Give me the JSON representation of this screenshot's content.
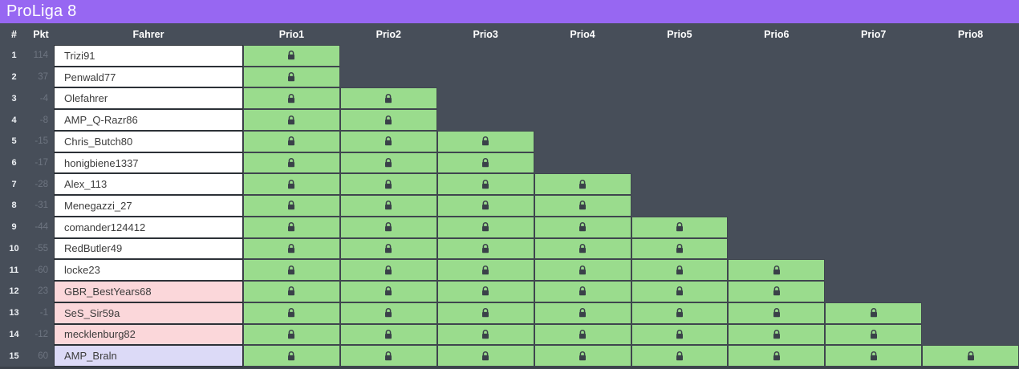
{
  "title": "ProLiga 8",
  "colors": {
    "titlebar_purple": "#9767f2",
    "background_slate": "#474e59",
    "locked_green": "#9adc8d",
    "row_pink": "#fbd7da",
    "row_lavender": "#dcdaf7",
    "row_white": "#ffffff",
    "lock_icon": "#3a4149",
    "points_text": "#6e7581"
  },
  "table": {
    "columns": [
      "#",
      "Pkt",
      "Fahrer",
      "Prio1",
      "Prio2",
      "Prio3",
      "Prio4",
      "Prio5",
      "Prio6",
      "Prio7",
      "Prio8"
    ],
    "rows": [
      {
        "rank": "1",
        "pkt": "114",
        "name": "Trizi91",
        "highlight": "white",
        "locks": 1
      },
      {
        "rank": "2",
        "pkt": "37",
        "name": "Penwald77",
        "highlight": "white",
        "locks": 1
      },
      {
        "rank": "3",
        "pkt": "-4",
        "name": "Olefahrer",
        "highlight": "white",
        "locks": 2
      },
      {
        "rank": "4",
        "pkt": "-8",
        "name": "AMP_Q-Razr86",
        "highlight": "white",
        "locks": 2
      },
      {
        "rank": "5",
        "pkt": "-15",
        "name": "Chris_Butch80",
        "highlight": "white",
        "locks": 3
      },
      {
        "rank": "6",
        "pkt": "-17",
        "name": "honigbiene1337",
        "highlight": "white",
        "locks": 3
      },
      {
        "rank": "7",
        "pkt": "-28",
        "name": "Alex_113",
        "highlight": "white",
        "locks": 4
      },
      {
        "rank": "8",
        "pkt": "-31",
        "name": "Menegazzi_27",
        "highlight": "white",
        "locks": 4
      },
      {
        "rank": "9",
        "pkt": "-44",
        "name": "comander124412",
        "highlight": "white",
        "locks": 5
      },
      {
        "rank": "10",
        "pkt": "-55",
        "name": "RedButler49",
        "highlight": "white",
        "locks": 5
      },
      {
        "rank": "11",
        "pkt": "-60",
        "name": "locke23",
        "highlight": "white",
        "locks": 6
      },
      {
        "rank": "12",
        "pkt": "23",
        "name": "GBR_BestYears68",
        "highlight": "pink",
        "locks": 6
      },
      {
        "rank": "13",
        "pkt": "-1",
        "name": "SeS_Sir59a",
        "highlight": "pink",
        "locks": 7
      },
      {
        "rank": "14",
        "pkt": "-12",
        "name": "mecklenburg82",
        "highlight": "pink",
        "locks": 7
      },
      {
        "rank": "15",
        "pkt": "60",
        "name": "AMP_Braln",
        "highlight": "lavender",
        "locks": 8
      }
    ]
  }
}
